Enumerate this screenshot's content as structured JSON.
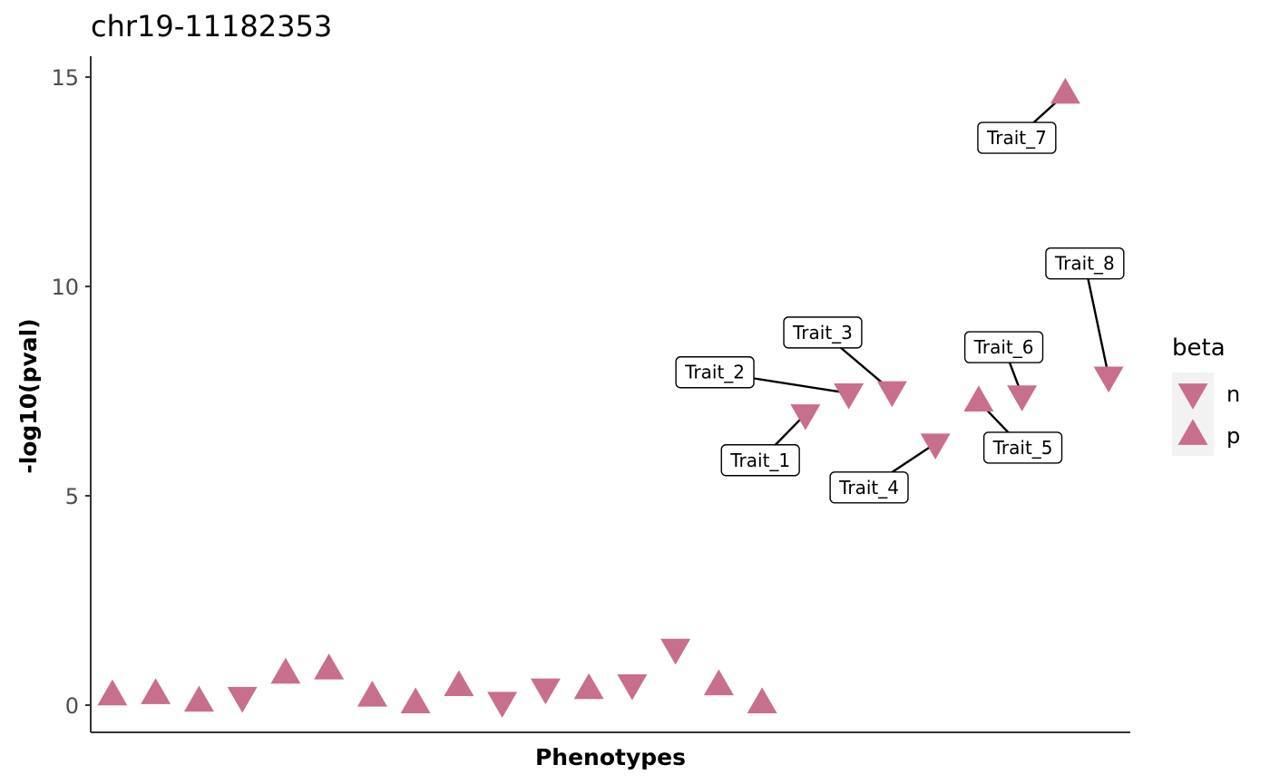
{
  "chart_data": {
    "type": "scatter",
    "title": "chr19-11182353",
    "xlabel": "Phenotypes",
    "ylabel": "-log10(pval)",
    "ylim": [
      -0.65,
      15.5
    ],
    "yticks": [
      0,
      5,
      10,
      15
    ],
    "grid": false,
    "marker_color": "#c86f8d",
    "legend": {
      "title": "beta",
      "position": "right",
      "entries": [
        {
          "key": "n",
          "label": "n",
          "shape": "triangle-down"
        },
        {
          "key": "p",
          "label": "p",
          "shape": "triangle-up"
        }
      ]
    },
    "points": [
      {
        "x": 1,
        "y": 0.23,
        "beta": "p"
      },
      {
        "x": 2,
        "y": 0.26,
        "beta": "p"
      },
      {
        "x": 3,
        "y": 0.08,
        "beta": "p"
      },
      {
        "x": 4,
        "y": 0.2,
        "beta": "n"
      },
      {
        "x": 5,
        "y": 0.75,
        "beta": "p"
      },
      {
        "x": 6,
        "y": 0.85,
        "beta": "p"
      },
      {
        "x": 7,
        "y": 0.2,
        "beta": "p"
      },
      {
        "x": 8,
        "y": 0.04,
        "beta": "p"
      },
      {
        "x": 9,
        "y": 0.45,
        "beta": "p"
      },
      {
        "x": 10,
        "y": 0.08,
        "beta": "n"
      },
      {
        "x": 11,
        "y": 0.4,
        "beta": "n"
      },
      {
        "x": 12,
        "y": 0.38,
        "beta": "p"
      },
      {
        "x": 13,
        "y": 0.5,
        "beta": "n"
      },
      {
        "x": 14,
        "y": 1.35,
        "beta": "n"
      },
      {
        "x": 15,
        "y": 0.47,
        "beta": "p"
      },
      {
        "x": 16,
        "y": 0.04,
        "beta": "p"
      },
      {
        "x": 17,
        "y": 6.95,
        "beta": "n",
        "label": "Trait_1"
      },
      {
        "x": 18,
        "y": 7.45,
        "beta": "n",
        "label": "Trait_2"
      },
      {
        "x": 19,
        "y": 7.5,
        "beta": "n",
        "label": "Trait_3"
      },
      {
        "x": 20,
        "y": 6.25,
        "beta": "n",
        "label": "Trait_4"
      },
      {
        "x": 21,
        "y": 7.25,
        "beta": "p",
        "label": "Trait_5"
      },
      {
        "x": 22,
        "y": 7.4,
        "beta": "n",
        "label": "Trait_6"
      },
      {
        "x": 23,
        "y": 14.6,
        "beta": "p",
        "label": "Trait_7"
      },
      {
        "x": 24,
        "y": 7.85,
        "beta": "n",
        "label": "Trait_8"
      }
    ],
    "annotations": [
      {
        "text": "Trait_1",
        "point": 17,
        "label_x": 15.96,
        "label_y": 5.85
      },
      {
        "text": "Trait_2",
        "point": 18,
        "label_x": 14.91,
        "label_y": 7.95
      },
      {
        "text": "Trait_3",
        "point": 19,
        "label_x": 17.4,
        "label_y": 8.9
      },
      {
        "text": "Trait_4",
        "point": 20,
        "label_x": 18.47,
        "label_y": 5.2
      },
      {
        "text": "Trait_5",
        "point": 21,
        "label_x": 22.02,
        "label_y": 6.15
      },
      {
        "text": "Trait_6",
        "point": 22,
        "label_x": 21.58,
        "label_y": 8.55
      },
      {
        "text": "Trait_7",
        "point": 23,
        "label_x": 21.88,
        "label_y": 13.55
      },
      {
        "text": "Trait_8",
        "point": 24,
        "label_x": 23.45,
        "label_y": 10.55
      }
    ]
  }
}
